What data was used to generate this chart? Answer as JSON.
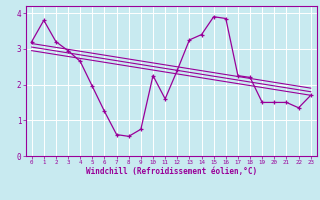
{
  "xlabel": "Windchill (Refroidissement éolien,°C)",
  "bg_color": "#c8eaf0",
  "line_color": "#990099",
  "grid_color": "#ffffff",
  "xlim": [
    -0.5,
    23.5
  ],
  "ylim": [
    0,
    4.2
  ],
  "xticks": [
    0,
    1,
    2,
    3,
    4,
    5,
    6,
    7,
    8,
    9,
    10,
    11,
    12,
    13,
    14,
    15,
    16,
    17,
    18,
    19,
    20,
    21,
    22,
    23
  ],
  "yticks": [
    0,
    1,
    2,
    3,
    4
  ],
  "main_x": [
    0,
    1,
    2,
    3,
    4,
    5,
    6,
    7,
    8,
    9,
    10,
    11,
    12,
    13,
    14,
    15,
    16,
    17,
    18,
    19,
    20,
    21,
    22,
    23
  ],
  "main_y": [
    3.2,
    3.8,
    3.2,
    2.95,
    2.65,
    1.95,
    1.25,
    0.6,
    0.55,
    0.75,
    2.25,
    1.6,
    2.4,
    3.25,
    3.4,
    3.9,
    3.85,
    2.25,
    2.2,
    1.5,
    1.5,
    1.5,
    1.35,
    1.7
  ],
  "reg_lines": [
    {
      "x": [
        0,
        23
      ],
      "y": [
        3.15,
        1.9
      ]
    },
    {
      "x": [
        0,
        23
      ],
      "y": [
        3.05,
        1.8
      ]
    },
    {
      "x": [
        0,
        23
      ],
      "y": [
        2.95,
        1.7
      ]
    }
  ]
}
